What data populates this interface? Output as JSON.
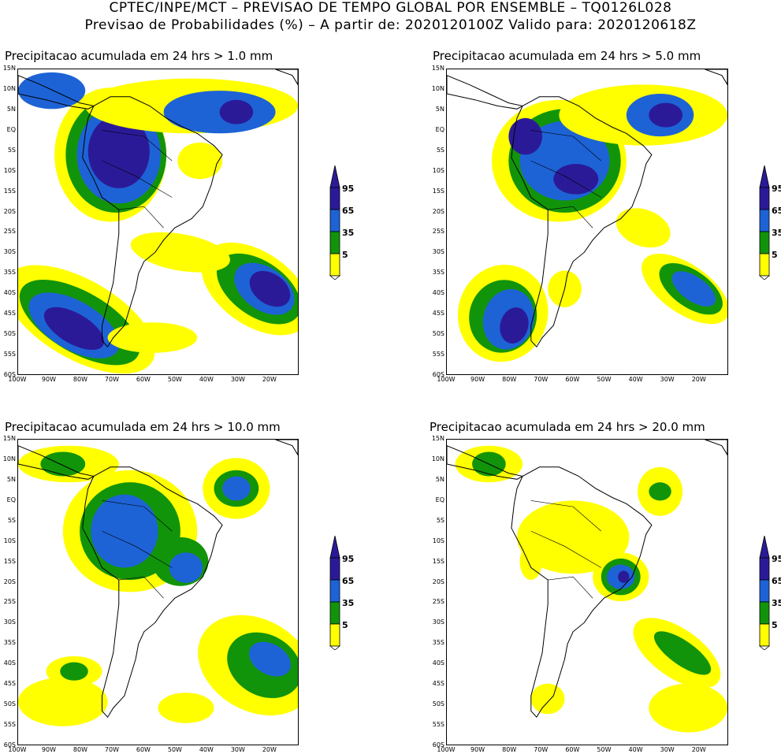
{
  "header": {
    "line1": "CPTEC/INPE/MCT – PREVISAO DE TEMPO GLOBAL POR ENSEMBLE – TQ0126L028",
    "line2": "Previsao de Probabilidades (%) –   A partir de: 2020120100Z  Valido para: 2020120618Z"
  },
  "colors": {
    "c5": "#ffff00",
    "c35": "#12940a",
    "c65": "#1d63d6",
    "c95": "#2b1a98",
    "land_outline": "#000000"
  },
  "colorbar": {
    "levels": [
      "95",
      "65",
      "35",
      "5"
    ]
  },
  "axes": {
    "lat_labels": [
      "15N",
      "10N",
      "5N",
      "EQ",
      "5S",
      "10S",
      "15S",
      "20S",
      "25S",
      "30S",
      "35S",
      "40S",
      "45S",
      "50S",
      "55S",
      "60S"
    ],
    "lon_labels": [
      "100W",
      "90W",
      "80W",
      "70W",
      "60W",
      "50W",
      "40W",
      "30W",
      "20W"
    ]
  },
  "panels": [
    {
      "title": "Precipitacao acumulada em 24 hrs > 1.0 mm"
    },
    {
      "title": "Precipitacao acumulada em 24 hrs > 5.0 mm"
    },
    {
      "title": "Precipitacao acumulada em 24 hrs > 10.0 mm"
    },
    {
      "title": "Precipitacao acumulada em 24 hrs > 20.0 mm"
    }
  ]
}
